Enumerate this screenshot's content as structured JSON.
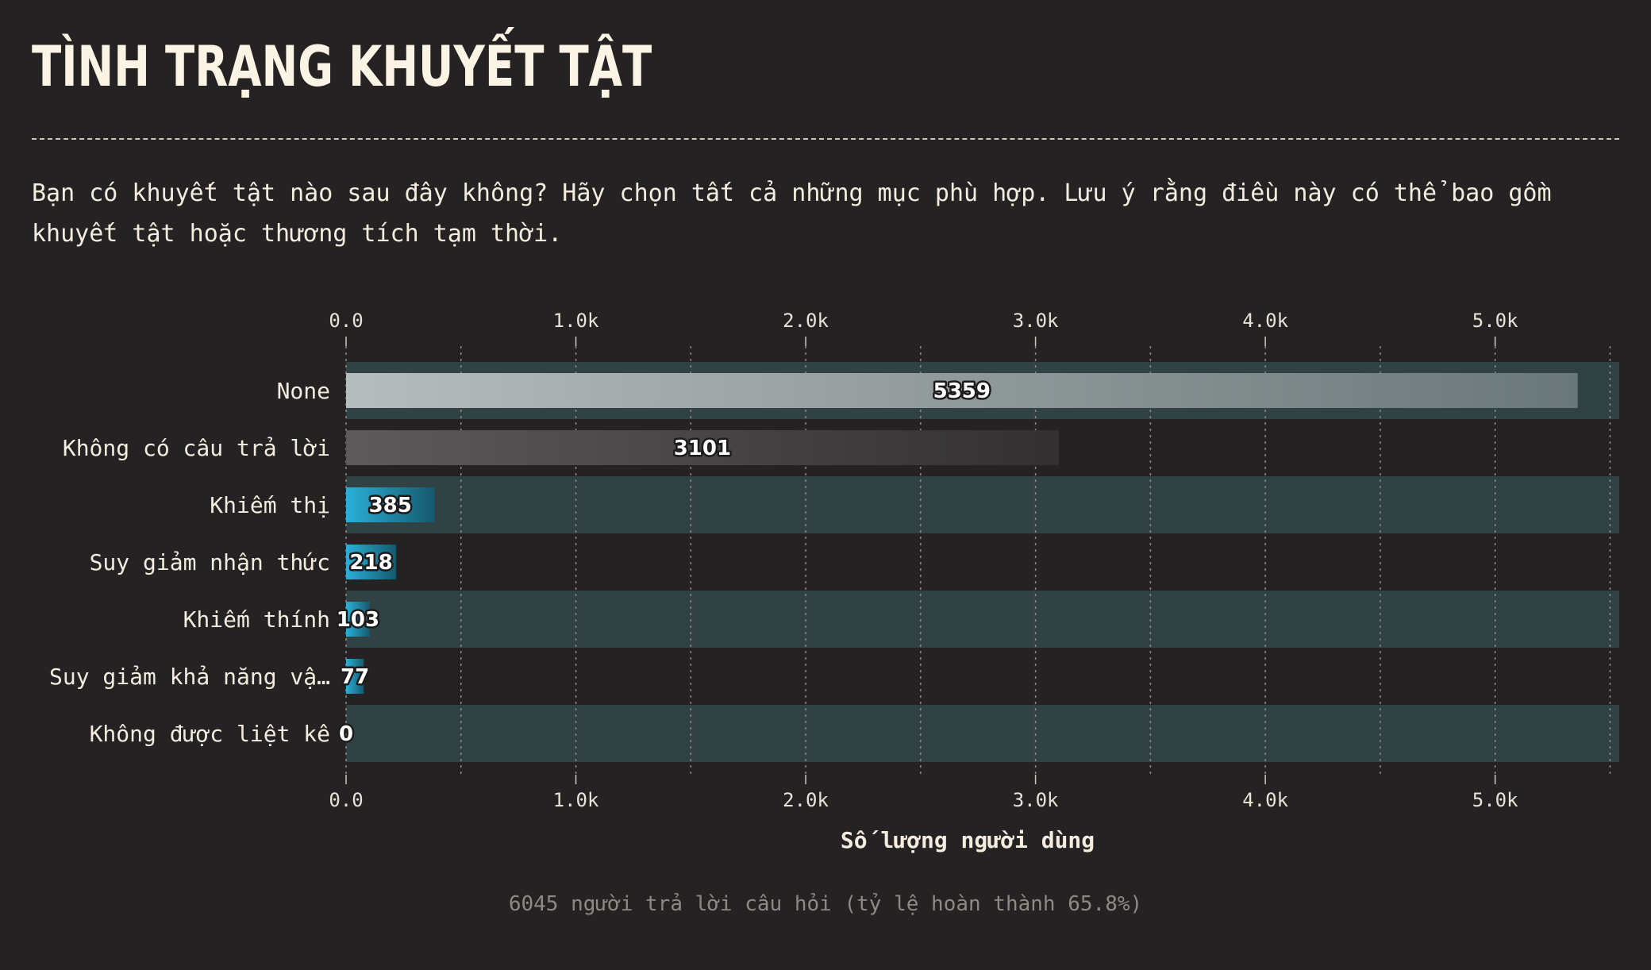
{
  "title": "TÌNH TRẠNG KHUYẾT TẬT",
  "question": "Bạn có khuyết tật nào sau đây không? Hãy chọn tất cả những mục phù hợp. Lưu ý rằng điều này có thể bao gồm khuyết tật hoặc thương tích tạm thời.",
  "footer": "6045 người trả lời câu hỏi (tỷ lệ hoàn thành 65.8%)",
  "colors": {
    "background": "#252223",
    "highlight_band": "#304244",
    "accent_bar": "#2aa7cf",
    "none_bar": "#b7bcbc",
    "no_answer_bar": "#5b5858",
    "text": "#f3ecdf"
  },
  "chart_data": {
    "type": "bar",
    "orientation": "horizontal",
    "categories": [
      "None",
      "Không có câu trả lời",
      "Khiếm thị",
      "Suy giảm nhận thức",
      "Khiếm thính",
      "Suy giảm khả năng vậ…",
      "Không được liệt kê"
    ],
    "values": [
      5359,
      3101,
      385,
      218,
      103,
      77,
      0
    ],
    "xlabel": "Số lượng người dùng",
    "xlim": [
      0,
      5540
    ],
    "xticks": [
      0,
      1000,
      2000,
      3000,
      4000,
      5000
    ],
    "xtick_labels": [
      "0.0",
      "1.0k",
      "2.0k",
      "3.0k",
      "4.0k",
      "5.0k"
    ],
    "axis_position": "top and bottom",
    "grid": true
  }
}
